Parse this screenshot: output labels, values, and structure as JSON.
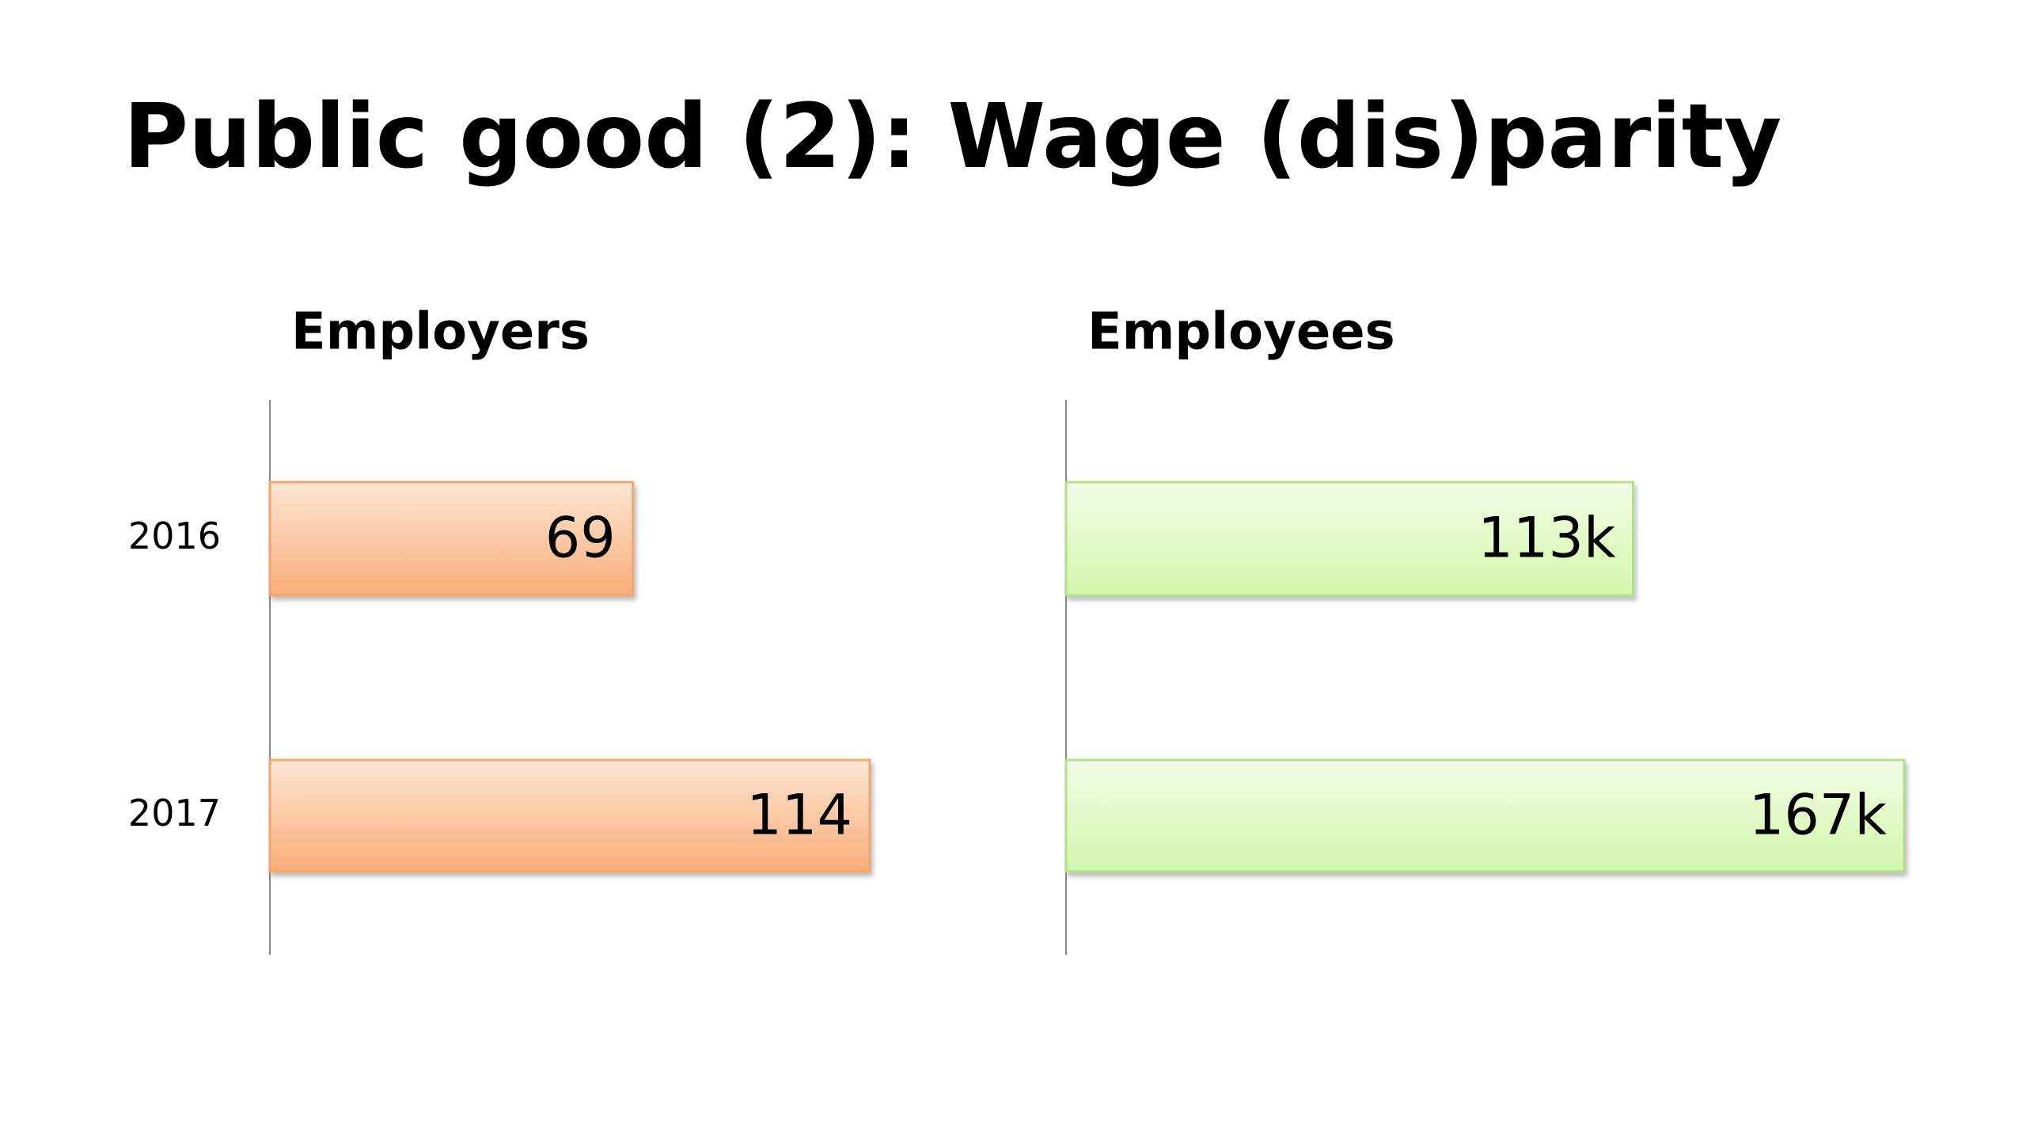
{
  "title": "Public good (2): Wage (dis)parity",
  "chart_data": [
    {
      "type": "bar",
      "orientation": "horizontal",
      "title": "Employers",
      "categories": [
        "2016",
        "2017"
      ],
      "values": [
        69,
        114
      ],
      "color": "orange"
    },
    {
      "type": "bar",
      "orientation": "horizontal",
      "title": "Employees",
      "categories": [
        null,
        null
      ],
      "values": [
        113000,
        167000
      ],
      "value_labels": [
        "113k",
        "167k"
      ],
      "color": "green"
    }
  ]
}
